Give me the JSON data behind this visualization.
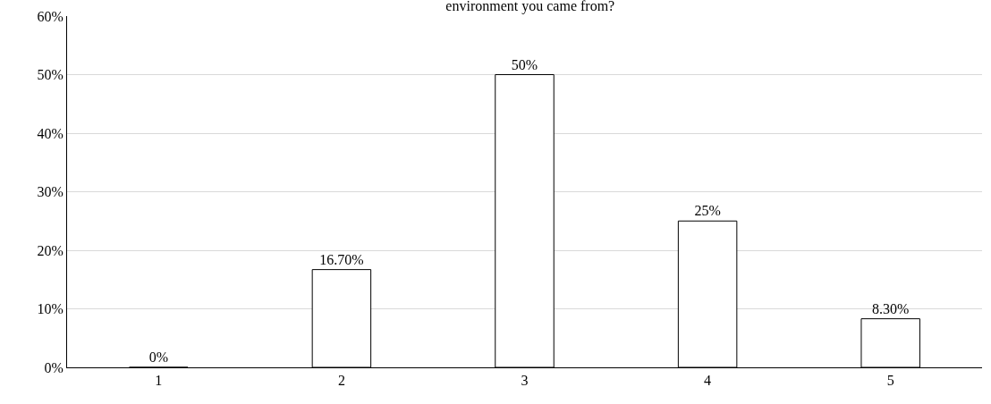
{
  "chart_data": {
    "type": "bar",
    "title": "environment you came from?",
    "categories": [
      "1",
      "2",
      "3",
      "4",
      "5"
    ],
    "values": [
      0,
      16.7,
      50,
      25,
      8.3
    ],
    "value_labels": [
      "0%",
      "16.70%",
      "50%",
      "25%",
      "8.30%"
    ],
    "color": "#ffffff",
    "ylim": [
      0,
      60
    ],
    "yticks": [
      {
        "value": 0,
        "label": "0%"
      },
      {
        "value": 10,
        "label": "10%"
      },
      {
        "value": 20,
        "label": "20%"
      },
      {
        "value": 30,
        "label": "30%"
      },
      {
        "value": 40,
        "label": "40%"
      },
      {
        "value": 50,
        "label": "50%"
      },
      {
        "value": 60,
        "label": "60%"
      }
    ],
    "grid": "y",
    "legend": false
  }
}
